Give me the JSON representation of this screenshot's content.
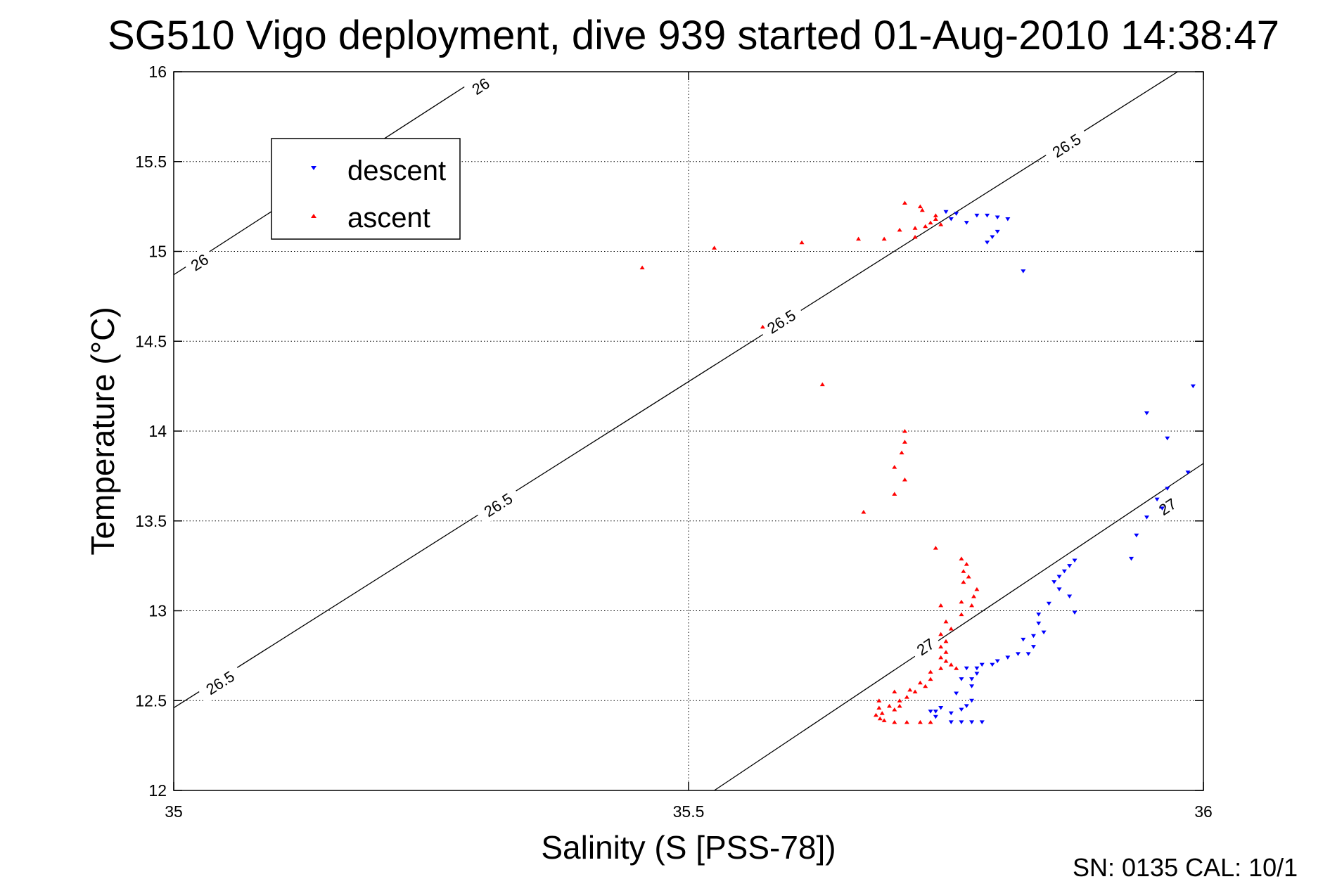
{
  "chart_data": {
    "type": "scatter",
    "title": "SG510 Vigo deployment, dive 939 started 01-Aug-2010 14:38:47",
    "xlabel": "Salinity (S [PSS-78])",
    "ylabel": "Temperature (°C)",
    "xlim": [
      35,
      36
    ],
    "ylim": [
      12,
      16
    ],
    "xticks": [
      35,
      35.5,
      36
    ],
    "xtick_labels": [
      "35",
      "35.5",
      "36"
    ],
    "yticks": [
      12,
      12.5,
      13,
      13.5,
      14,
      14.5,
      15,
      15.5,
      16
    ],
    "ytick_labels": [
      "12",
      "12.5",
      "13",
      "13.5",
      "14",
      "14.5",
      "15",
      "15.5",
      "16"
    ],
    "grid": true,
    "legend_position": "top-left",
    "footer": "SN: 0135  CAL: 10/1",
    "series": [
      {
        "name": "descent",
        "color": "#0000ff",
        "marker": "triangle-down",
        "points": [
          [
            35.75,
            15.22
          ],
          [
            35.755,
            15.18
          ],
          [
            35.76,
            15.21
          ],
          [
            35.77,
            15.16
          ],
          [
            35.78,
            15.2
          ],
          [
            35.79,
            15.2
          ],
          [
            35.8,
            15.19
          ],
          [
            35.81,
            15.18
          ],
          [
            35.79,
            15.05
          ],
          [
            35.795,
            15.08
          ],
          [
            35.8,
            15.11
          ],
          [
            35.825,
            14.89
          ],
          [
            35.99,
            14.25
          ],
          [
            35.945,
            14.1
          ],
          [
            35.965,
            13.96
          ],
          [
            35.985,
            13.77
          ],
          [
            35.965,
            13.68
          ],
          [
            35.955,
            13.62
          ],
          [
            35.96,
            13.57
          ],
          [
            35.945,
            13.52
          ],
          [
            35.935,
            13.42
          ],
          [
            35.93,
            13.29
          ],
          [
            35.875,
            13.28
          ],
          [
            35.87,
            13.25
          ],
          [
            35.865,
            13.22
          ],
          [
            35.86,
            13.19
          ],
          [
            35.855,
            13.16
          ],
          [
            35.86,
            13.12
          ],
          [
            35.87,
            13.08
          ],
          [
            35.85,
            13.04
          ],
          [
            35.875,
            12.99
          ],
          [
            35.84,
            12.98
          ],
          [
            35.84,
            12.93
          ],
          [
            35.845,
            12.88
          ],
          [
            35.835,
            12.86
          ],
          [
            35.825,
            12.84
          ],
          [
            35.835,
            12.8
          ],
          [
            35.82,
            12.76
          ],
          [
            35.83,
            12.76
          ],
          [
            35.81,
            12.74
          ],
          [
            35.8,
            12.72
          ],
          [
            35.795,
            12.7
          ],
          [
            35.785,
            12.7
          ],
          [
            35.78,
            12.68
          ],
          [
            35.77,
            12.68
          ],
          [
            35.78,
            12.65
          ],
          [
            35.775,
            12.62
          ],
          [
            35.765,
            12.62
          ],
          [
            35.775,
            12.58
          ],
          [
            35.76,
            12.54
          ],
          [
            35.775,
            12.5
          ],
          [
            35.77,
            12.47
          ],
          [
            35.765,
            12.45
          ],
          [
            35.755,
            12.43
          ],
          [
            35.745,
            12.46
          ],
          [
            35.74,
            12.44
          ],
          [
            35.735,
            12.44
          ],
          [
            35.74,
            12.41
          ],
          [
            35.755,
            12.38
          ],
          [
            35.765,
            12.38
          ],
          [
            35.775,
            12.38
          ],
          [
            35.785,
            12.38
          ]
        ]
      },
      {
        "name": "ascent",
        "color": "#ff0000",
        "marker": "triangle-up",
        "points": [
          [
            35.455,
            14.91
          ],
          [
            35.525,
            15.02
          ],
          [
            35.61,
            15.05
          ],
          [
            35.665,
            15.07
          ],
          [
            35.69,
            15.07
          ],
          [
            35.705,
            15.12
          ],
          [
            35.71,
            15.27
          ],
          [
            35.72,
            15.08
          ],
          [
            35.72,
            15.13
          ],
          [
            35.725,
            15.25
          ],
          [
            35.727,
            15.23
          ],
          [
            35.73,
            15.14
          ],
          [
            35.735,
            15.16
          ],
          [
            35.74,
            15.18
          ],
          [
            35.74,
            15.2
          ],
          [
            35.745,
            15.15
          ],
          [
            35.572,
            14.58
          ],
          [
            35.63,
            14.26
          ],
          [
            35.71,
            14.0
          ],
          [
            35.71,
            13.94
          ],
          [
            35.707,
            13.88
          ],
          [
            35.7,
            13.8
          ],
          [
            35.71,
            13.73
          ],
          [
            35.7,
            13.65
          ],
          [
            35.67,
            13.55
          ],
          [
            35.74,
            13.35
          ],
          [
            35.765,
            13.29
          ],
          [
            35.77,
            13.26
          ],
          [
            35.767,
            13.22
          ],
          [
            35.772,
            13.19
          ],
          [
            35.767,
            13.16
          ],
          [
            35.78,
            13.12
          ],
          [
            35.777,
            13.08
          ],
          [
            35.765,
            13.05
          ],
          [
            35.775,
            13.03
          ],
          [
            35.745,
            13.03
          ],
          [
            35.765,
            12.98
          ],
          [
            35.75,
            12.94
          ],
          [
            35.755,
            12.9
          ],
          [
            35.745,
            12.87
          ],
          [
            35.75,
            12.83
          ],
          [
            35.745,
            12.8
          ],
          [
            35.75,
            12.77
          ],
          [
            35.745,
            12.74
          ],
          [
            35.75,
            12.72
          ],
          [
            35.755,
            12.7
          ],
          [
            35.76,
            12.68
          ],
          [
            35.745,
            12.68
          ],
          [
            35.735,
            12.66
          ],
          [
            35.735,
            12.62
          ],
          [
            35.73,
            12.58
          ],
          [
            35.725,
            12.6
          ],
          [
            35.72,
            12.55
          ],
          [
            35.715,
            12.56
          ],
          [
            35.712,
            12.52
          ],
          [
            35.7,
            12.55
          ],
          [
            35.705,
            12.5
          ],
          [
            35.705,
            12.47
          ],
          [
            35.7,
            12.45
          ],
          [
            35.695,
            12.47
          ],
          [
            35.685,
            12.5
          ],
          [
            35.685,
            12.46
          ],
          [
            35.688,
            12.43
          ],
          [
            35.682,
            12.42
          ],
          [
            35.686,
            12.4
          ],
          [
            35.69,
            12.39
          ],
          [
            35.7,
            12.38
          ],
          [
            35.712,
            12.38
          ],
          [
            35.725,
            12.38
          ],
          [
            35.735,
            12.38
          ]
        ]
      }
    ],
    "contours": [
      {
        "level": "26",
        "points": [
          [
            35.0,
            14.87
          ],
          [
            35.305,
            16.0
          ]
        ],
        "labels": [
          [
            35.025,
            14.94
          ],
          [
            35.298,
            15.92
          ]
        ]
      },
      {
        "level": "26.5",
        "points": [
          [
            35.0,
            12.46
          ],
          [
            35.975,
            16.0
          ]
        ],
        "labels": [
          [
            35.045,
            12.6
          ],
          [
            35.315,
            13.59
          ],
          [
            35.59,
            14.61
          ],
          [
            35.867,
            15.59
          ]
        ]
      },
      {
        "level": "27",
        "points": [
          [
            35.525,
            12.0
          ],
          [
            36.0,
            13.82
          ]
        ],
        "labels": [
          [
            35.73,
            12.8
          ],
          [
            35.965,
            13.58
          ]
        ]
      }
    ]
  }
}
